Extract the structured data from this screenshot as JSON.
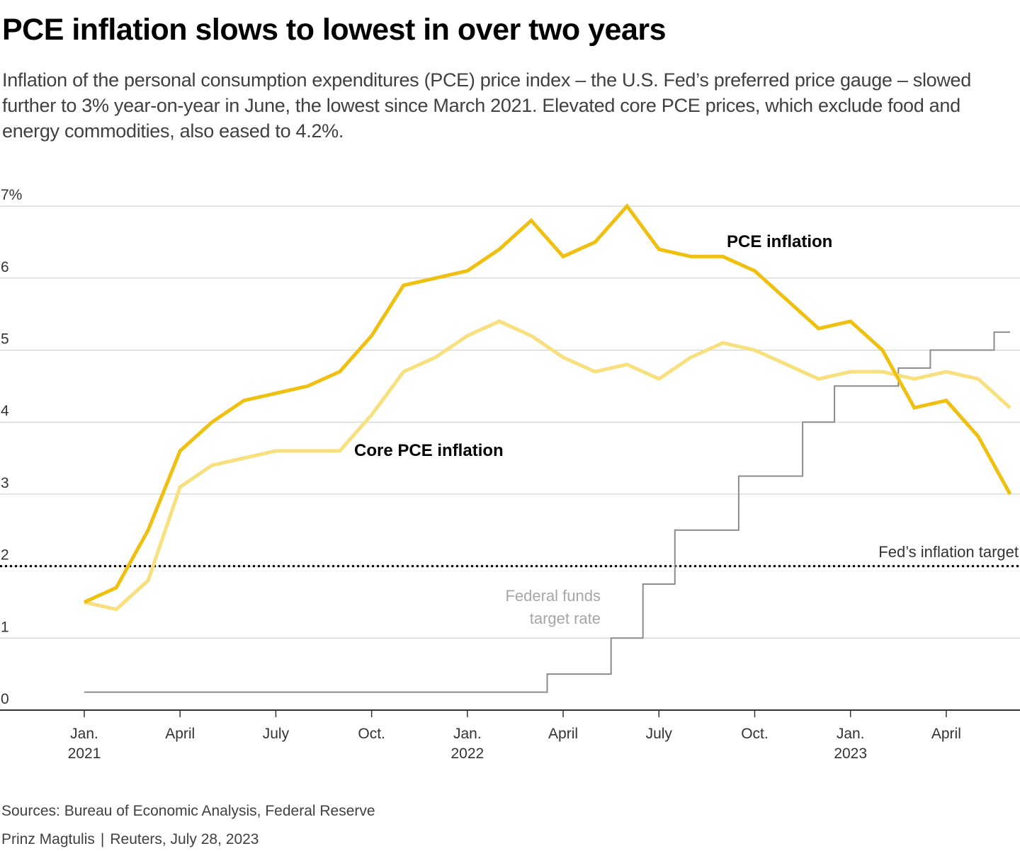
{
  "title": "PCE inflation slows to lowest in over two years",
  "subtitle": "Inflation of the personal consumption expenditures (PCE) price index – the U.S. Fed’s preferred price gauge – slowed further to 3% year-on-year in June, the lowest since March 2021. Elevated core PCE prices, which exclude food and energy commodities, also eased to 4.2%.",
  "footer": {
    "sources": "Sources: Bureau of Economic Analysis, Federal Reserve",
    "author": "Prinz Magtulis",
    "publisher": "Reuters, July 28, 2023"
  },
  "colors": {
    "pce": "#f0c010",
    "core_pce": "#f8e07e",
    "fed_funds": "#8c8c8c",
    "grid": "#cccccc",
    "axis": "#333333",
    "label_gray": "#a6a6a6"
  },
  "chart_data": {
    "type": "line",
    "ylim": [
      0,
      7
    ],
    "y_ticks": [
      {
        "value": 0,
        "label": "0"
      },
      {
        "value": 1,
        "label": "1"
      },
      {
        "value": 2,
        "label": "2"
      },
      {
        "value": 3,
        "label": "3"
      },
      {
        "value": 4,
        "label": "4"
      },
      {
        "value": 5,
        "label": "5"
      },
      {
        "value": 6,
        "label": "6"
      },
      {
        "value": 7,
        "label": "7%"
      }
    ],
    "grid": true,
    "x": [
      "2021-01",
      "2021-02",
      "2021-03",
      "2021-04",
      "2021-05",
      "2021-06",
      "2021-07",
      "2021-08",
      "2021-09",
      "2021-10",
      "2021-11",
      "2021-12",
      "2022-01",
      "2022-02",
      "2022-03",
      "2022-04",
      "2022-05",
      "2022-06",
      "2022-07",
      "2022-08",
      "2022-09",
      "2022-10",
      "2022-11",
      "2022-12",
      "2023-01",
      "2023-02",
      "2023-03",
      "2023-04",
      "2023-05",
      "2023-06"
    ],
    "x_ticks": [
      {
        "x": "2021-01",
        "line1": "Jan.",
        "line2": "2021"
      },
      {
        "x": "2021-04",
        "line1": "April",
        "line2": ""
      },
      {
        "x": "2021-07",
        "line1": "July",
        "line2": ""
      },
      {
        "x": "2021-10",
        "line1": "Oct.",
        "line2": ""
      },
      {
        "x": "2022-01",
        "line1": "Jan.",
        "line2": "2022"
      },
      {
        "x": "2022-04",
        "line1": "April",
        "line2": ""
      },
      {
        "x": "2022-07",
        "line1": "July",
        "line2": ""
      },
      {
        "x": "2022-10",
        "line1": "Oct.",
        "line2": ""
      },
      {
        "x": "2023-01",
        "line1": "Jan.",
        "line2": "2023"
      },
      {
        "x": "2023-04",
        "line1": "April",
        "line2": ""
      }
    ],
    "series": [
      {
        "name": "PCE inflation",
        "values": [
          1.5,
          1.7,
          2.5,
          3.6,
          4.0,
          4.3,
          4.4,
          4.5,
          4.7,
          5.2,
          5.9,
          6.0,
          6.1,
          6.4,
          6.8,
          6.3,
          6.5,
          7.0,
          6.4,
          6.3,
          6.3,
          6.1,
          5.7,
          5.3,
          5.4,
          5.0,
          4.2,
          4.3,
          3.8,
          3.0
        ]
      },
      {
        "name": "Core PCE inflation",
        "values": [
          1.5,
          1.4,
          1.8,
          3.1,
          3.4,
          3.5,
          3.6,
          3.6,
          3.6,
          4.1,
          4.7,
          4.9,
          5.2,
          5.4,
          5.2,
          4.9,
          4.7,
          4.8,
          4.6,
          4.9,
          5.1,
          5.0,
          4.8,
          4.6,
          4.7,
          4.7,
          4.6,
          4.7,
          4.6,
          4.2
        ]
      },
      {
        "name": "Federal funds target rate",
        "steps": [
          {
            "x": "2021-01",
            "value": 0.25
          },
          {
            "x": "2022-03.5",
            "value": 0.5
          },
          {
            "x": "2022-05.5",
            "value": 1.0
          },
          {
            "x": "2022-06.5",
            "value": 1.75
          },
          {
            "x": "2022-07.5",
            "value": 2.5
          },
          {
            "x": "2022-09.5",
            "value": 3.25
          },
          {
            "x": "2022-11.5",
            "value": 4.0
          },
          {
            "x": "2022-12.5",
            "value": 4.5
          },
          {
            "x": "2023-02.5",
            "value": 4.75
          },
          {
            "x": "2023-03.5",
            "value": 5.0
          },
          {
            "x": "2023-05.5",
            "value": 5.25
          },
          {
            "x": "2023-06",
            "value": 5.25
          }
        ]
      }
    ],
    "reference_line": {
      "value": 2.0,
      "label": "Fed’s inflation target"
    },
    "annotations": {
      "pce": "PCE inflation",
      "core": "Core PCE inflation",
      "fed_funds_line1": "Federal funds",
      "fed_funds_line2": "target rate"
    }
  }
}
